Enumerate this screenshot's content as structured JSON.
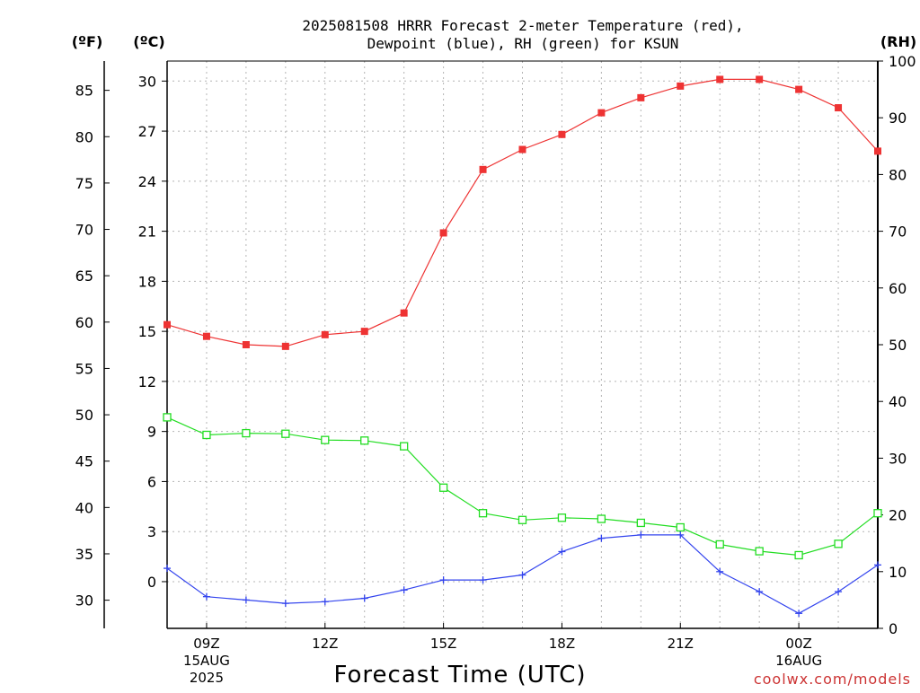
{
  "chart_data": {
    "type": "line",
    "title_lines": [
      "2025081508 HRRR Forecast 2-meter Temperature (red),",
      "Dewpoint (blue), RH (green) for KSUN"
    ],
    "xlabel": "Forecast Time (UTC)",
    "credit": "coolwx.com/models",
    "unit_labels": {
      "fahrenheit": "(ºF)",
      "celsius": "(ºC)",
      "rh": "(RH)"
    },
    "x_hours": [
      8,
      9,
      10,
      11,
      12,
      13,
      14,
      15,
      16,
      17,
      18,
      19,
      20,
      21,
      22,
      23,
      24,
      25,
      26
    ],
    "xlim": [
      8,
      26
    ],
    "x_ticks": [
      {
        "hour": 9,
        "lines": [
          "09Z",
          "15AUG",
          "2025"
        ]
      },
      {
        "hour": 12,
        "lines": [
          "12Z"
        ]
      },
      {
        "hour": 15,
        "lines": [
          "15Z"
        ]
      },
      {
        "hour": 18,
        "lines": [
          "18Z"
        ]
      },
      {
        "hour": 21,
        "lines": [
          "21Z"
        ]
      },
      {
        "hour": 24,
        "lines": [
          "00Z",
          "16AUG"
        ]
      }
    ],
    "celsius_axis": {
      "ylim": [
        -2.8,
        31.2
      ],
      "ticks": [
        0,
        3,
        6,
        9,
        12,
        15,
        18,
        21,
        24,
        27,
        30
      ]
    },
    "fahrenheit_axis": {
      "ticks": [
        30,
        35,
        40,
        45,
        50,
        55,
        60,
        65,
        70,
        75,
        80,
        85
      ]
    },
    "rh_axis": {
      "ylim": [
        0,
        100
      ],
      "ticks": [
        0,
        10,
        20,
        30,
        40,
        50,
        60,
        70,
        80,
        90,
        100
      ]
    },
    "series": [
      {
        "name": "Temperature",
        "axis": "celsius",
        "color": "#ee3333",
        "marker": "filled-square",
        "values": [
          15.4,
          14.7,
          14.2,
          14.1,
          14.8,
          15.0,
          16.1,
          20.9,
          24.7,
          25.9,
          26.8,
          28.1,
          29.0,
          29.7,
          30.1,
          30.1,
          29.5,
          28.4,
          25.8
        ]
      },
      {
        "name": "Dewpoint",
        "axis": "celsius",
        "color": "#3344ee",
        "marker": "plus",
        "values": [
          0.8,
          -0.9,
          -1.1,
          -1.3,
          -1.2,
          -1.0,
          -0.5,
          0.1,
          0.1,
          0.4,
          1.8,
          2.6,
          2.8,
          2.8,
          0.6,
          -0.6,
          -1.9,
          -0.6,
          1.0
        ]
      },
      {
        "name": "RH",
        "axis": "rh",
        "color": "#22dd22",
        "marker": "open-square",
        "values": [
          37.2,
          34.1,
          34.4,
          34.3,
          33.2,
          33.1,
          32.1,
          24.8,
          20.3,
          19.1,
          19.5,
          19.3,
          18.6,
          17.8,
          14.8,
          13.6,
          12.9,
          14.9,
          20.3
        ]
      }
    ]
  }
}
